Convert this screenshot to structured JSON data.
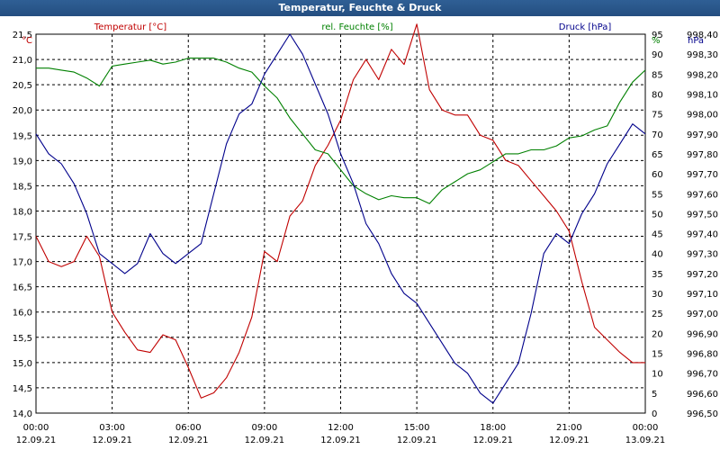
{
  "window_title": "Temperatur, Feuchte & Druck",
  "chart_data": {
    "type": "line",
    "title": "Temperatur, Feuchte & Druck",
    "colors": {
      "temperature": "#c00000",
      "humidity": "#008000",
      "pressure": "#00008b",
      "grid": "#000000"
    },
    "x_ticks": [
      {
        "time": "00:00",
        "date": "12.09.21"
      },
      {
        "time": "03:00",
        "date": "12.09.21"
      },
      {
        "time": "06:00",
        "date": "12.09.21"
      },
      {
        "time": "09:00",
        "date": "12.09.21"
      },
      {
        "time": "12:00",
        "date": "12.09.21"
      },
      {
        "time": "15:00",
        "date": "12.09.21"
      },
      {
        "time": "18:00",
        "date": "12.09.21"
      },
      {
        "time": "21:00",
        "date": "12.09.21"
      },
      {
        "time": "00:00",
        "date": "13.09.21"
      }
    ],
    "x_range_hours": [
      0,
      24
    ],
    "axes": {
      "left": {
        "unit": "°C",
        "range": [
          14.0,
          21.5
        ],
        "ticks": [
          "14,0",
          "14,5",
          "15,0",
          "15,5",
          "16,0",
          "16,5",
          "17,0",
          "17,5",
          "18,0",
          "18,5",
          "19,0",
          "19,5",
          "20,0",
          "20,5",
          "21,0",
          "21,5"
        ]
      },
      "right1": {
        "unit": "%",
        "range": [
          0,
          95
        ],
        "ticks": [
          "0",
          "5",
          "10",
          "15",
          "20",
          "25",
          "30",
          "35",
          "40",
          "45",
          "50",
          "55",
          "60",
          "65",
          "70",
          "75",
          "80",
          "85",
          "90",
          "95"
        ]
      },
      "right2": {
        "unit": "hPa",
        "range": [
          996.5,
          998.4
        ],
        "ticks": [
          "996,50",
          "996,60",
          "996,70",
          "996,80",
          "996,90",
          "997,00",
          "997,10",
          "997,20",
          "997,30",
          "997,40",
          "997,50",
          "997,60",
          "997,70",
          "997,80",
          "997,90",
          "998,00",
          "998,10",
          "998,20",
          "998,30",
          "998,40"
        ]
      }
    },
    "series": [
      {
        "name": "Temperatur [°C]",
        "axis": "left",
        "color": "#c00000",
        "x": [
          0,
          0.5,
          1,
          1.5,
          2,
          2.5,
          3,
          3.5,
          4,
          4.5,
          5,
          5.5,
          6,
          6.5,
          7,
          7.5,
          8,
          8.5,
          9,
          9.5,
          10,
          10.5,
          11,
          11.5,
          12,
          12.5,
          13,
          13.5,
          14,
          14.5,
          15,
          15.5,
          16,
          16.5,
          17,
          17.5,
          18,
          18.5,
          19,
          19.5,
          20,
          20.5,
          21,
          21.5,
          22,
          22.5,
          23,
          23.5,
          24
        ],
        "values": [
          17.5,
          17.0,
          16.9,
          17.0,
          17.5,
          17.1,
          16.0,
          15.6,
          15.25,
          15.2,
          15.55,
          15.45,
          14.9,
          14.3,
          14.4,
          14.7,
          15.2,
          15.9,
          17.2,
          17.0,
          17.9,
          18.2,
          18.9,
          19.3,
          19.8,
          20.6,
          21.0,
          20.6,
          21.2,
          20.9,
          21.7,
          20.4,
          20.0,
          19.9,
          19.9,
          19.5,
          19.4,
          19.0,
          18.9,
          18.6,
          18.3,
          18.0,
          17.6,
          16.6,
          15.7,
          15.45,
          15.2,
          15.0,
          15.0
        ]
      },
      {
        "name": "rel. Feuchte [%]",
        "axis": "right1",
        "color": "#008000",
        "x": [
          0,
          0.5,
          1,
          1.5,
          2,
          2.5,
          3,
          3.5,
          4,
          4.5,
          5,
          5.5,
          6,
          6.5,
          7,
          7.5,
          8,
          8.5,
          9,
          9.5,
          10,
          10.5,
          11,
          11.5,
          12,
          12.5,
          13,
          13.5,
          14,
          14.5,
          15,
          15.5,
          16,
          16.5,
          17,
          17.5,
          18,
          18.5,
          19,
          19.5,
          20,
          20.5,
          21,
          21.5,
          22,
          22.5,
          23,
          23.5,
          24
        ],
        "values": [
          86.5,
          86.5,
          86,
          85.5,
          84,
          82,
          87,
          87.5,
          88,
          88.5,
          87.5,
          88,
          89,
          89,
          89,
          88,
          86.5,
          85.5,
          82,
          79,
          74,
          70,
          66,
          65,
          61,
          57,
          55,
          53.5,
          54.5,
          54,
          54,
          52.5,
          56,
          58,
          60,
          61,
          63,
          65,
          65,
          66,
          66,
          67,
          69,
          69.5,
          71,
          72,
          78,
          83,
          86
        ]
      },
      {
        "name": "Druck [hPa]",
        "axis": "right2",
        "color": "#00008b",
        "x": [
          0,
          0.5,
          1,
          1.5,
          2,
          2.5,
          3,
          3.5,
          4,
          4.5,
          5,
          5.5,
          6,
          6.5,
          7,
          7.5,
          8,
          8.5,
          9,
          9.5,
          10,
          10.5,
          11,
          11.5,
          12,
          12.5,
          13,
          13.5,
          14,
          14.5,
          15,
          15.5,
          16,
          16.5,
          17,
          17.5,
          18,
          18.5,
          19,
          19.5,
          20,
          20.5,
          21,
          21.5,
          22,
          22.5,
          23,
          23.5,
          24
        ],
        "values": [
          997.9,
          997.8,
          997.75,
          997.65,
          997.5,
          997.3,
          997.25,
          997.2,
          997.25,
          997.4,
          997.3,
          997.25,
          997.3,
          997.35,
          997.6,
          997.85,
          998.0,
          998.05,
          998.2,
          998.3,
          998.4,
          998.3,
          998.15,
          998.0,
          997.8,
          997.65,
          997.45,
          997.35,
          997.2,
          997.1,
          997.05,
          996.95,
          996.85,
          996.75,
          996.7,
          996.6,
          996.55,
          996.65,
          996.75,
          997.0,
          997.3,
          997.4,
          997.35,
          997.5,
          997.6,
          997.75,
          997.85,
          997.95,
          997.9
        ]
      }
    ]
  }
}
